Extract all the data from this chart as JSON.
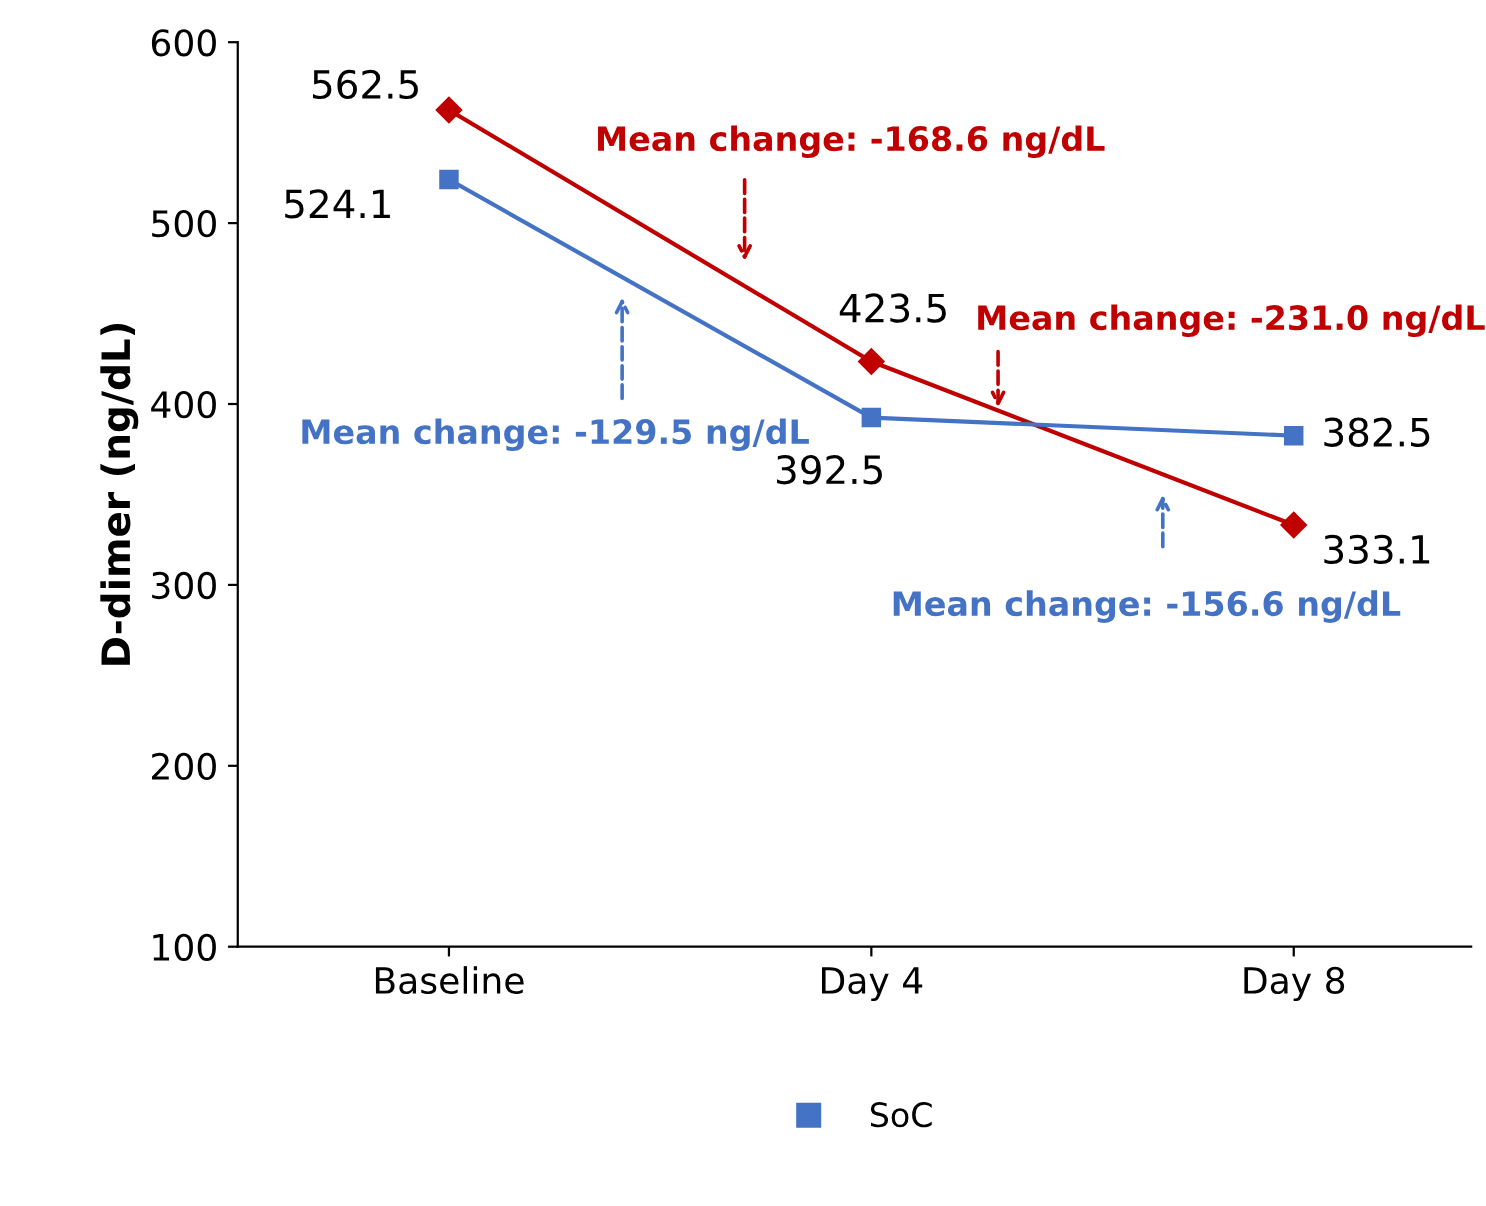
{
  "chart_data": {
    "type": "line",
    "ylabel": "D-dimer (ng/dL)",
    "categories": [
      "Baseline",
      "Day 4",
      "Day 8"
    ],
    "series": [
      {
        "color": "#c00000",
        "marker": "diamond",
        "values": [
          562.5,
          423.5,
          333.1
        ]
      },
      {
        "name": "SoC",
        "color": "#4472c4",
        "marker": "square",
        "values": [
          524.1,
          392.5,
          382.5
        ]
      }
    ],
    "data_labels": true,
    "ylim": [
      100,
      600
    ],
    "yticks": [
      100,
      200,
      300,
      400,
      500,
      600
    ],
    "annotations": [
      "Mean change: -168.6 ng/dL",
      "Mean change: -231.0 ng/dL",
      "Mean change: -129.5 ng/dL",
      "Mean change: -156.6 ng/dL"
    ],
    "legend": "bottom",
    "grid": false,
    "line_style": "solid"
  }
}
